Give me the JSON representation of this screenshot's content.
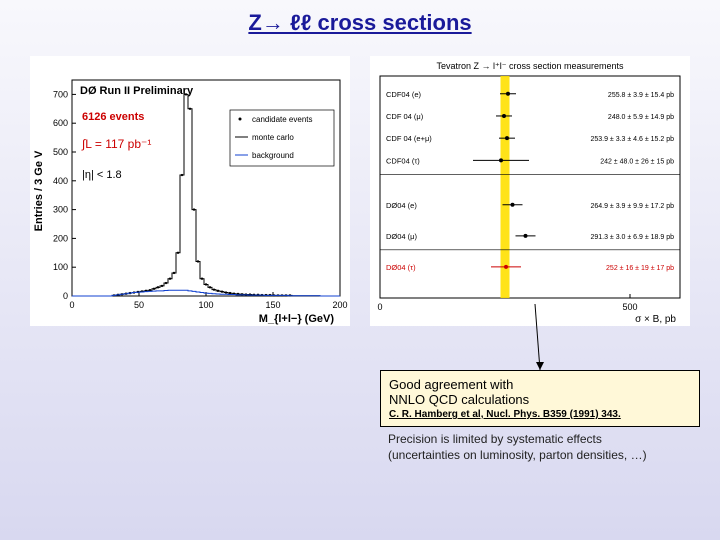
{
  "title": "Z→ ℓℓ cross sections",
  "leftChart": {
    "type": "histogram",
    "headerLeft": "Entries / 3 Ge V",
    "headerRight": "DØ Run II Preliminary",
    "eventsLabel": "6126 events",
    "eventsColor": "#cc0000",
    "lumiLabel": "∫L = 117 pb⁻¹",
    "lumiColor": "#cc0000",
    "etaLabel": "|η| < 1.8",
    "legend": [
      {
        "label": "candidate events",
        "marker": "point",
        "color": "#000000"
      },
      {
        "label": "monte carlo",
        "marker": "line",
        "color": "#000000"
      },
      {
        "label": "background",
        "marker": "line",
        "color": "#1040d0"
      }
    ],
    "xlabel": "M_{l+l−}  (GeV)",
    "xlim": [
      0,
      200
    ],
    "xticks": [
      0,
      50,
      100,
      150,
      200
    ],
    "ylim": [
      0,
      750
    ],
    "yticks": [
      0,
      100,
      200,
      300,
      400,
      500,
      600,
      700
    ],
    "hist_bins": [
      0,
      0,
      0,
      0,
      0,
      0,
      0,
      0,
      0,
      0,
      2,
      4,
      6,
      8,
      10,
      12,
      14,
      16,
      18,
      20,
      25,
      30,
      35,
      45,
      60,
      80,
      150,
      420,
      700,
      650,
      300,
      120,
      60,
      40,
      30,
      22,
      18,
      15,
      12,
      10,
      8,
      7,
      6,
      5,
      5,
      4,
      4,
      3,
      3,
      3,
      2,
      2,
      2,
      2,
      2,
      1,
      1,
      1,
      1,
      1,
      1,
      1,
      0,
      0,
      0,
      0,
      0
    ],
    "hist_color": "#000000",
    "bg_bins": [
      0,
      0,
      0,
      0,
      0,
      0,
      0,
      0,
      0,
      0,
      2,
      4,
      6,
      8,
      10,
      12,
      13,
      14,
      15,
      16,
      17,
      18,
      18,
      19,
      20,
      20,
      20,
      20,
      20,
      18,
      16,
      14,
      12,
      10,
      9,
      8,
      7,
      6,
      6,
      5,
      5,
      4,
      4,
      4,
      3,
      3,
      3,
      3,
      2,
      2,
      2,
      2,
      2,
      2,
      1,
      1,
      1,
      1,
      1,
      1,
      1,
      1,
      0,
      0,
      0,
      0,
      0
    ],
    "bg_color": "#1040d0",
    "background_color": "#ffffff",
    "axis_color": "#000000",
    "label_fontsize": 11
  },
  "rightChart": {
    "type": "point-range",
    "title": "Tevatron Z → l⁺l⁻ cross section measurements",
    "xlabel": "σ × B, pb",
    "xlim": [
      0,
      600
    ],
    "xticks": [
      0,
      500
    ],
    "rows": [
      {
        "label": "CDF04 (e)",
        "value": "255.8 ± 3.9",
        "extra": "± 15.4 pb",
        "x": 256,
        "xerr": 16,
        "color": "#000000"
      },
      {
        "label": "CDF 04 (μ)",
        "value": "248.0 ± 5.9",
        "extra": "± 14.9 pb",
        "x": 248,
        "xerr": 16,
        "color": "#000000"
      },
      {
        "label": "CDF 04 (e+μ)",
        "value": "253.9 ± 3.3 ± 4.6 ± 15.2 pb",
        "x": 254,
        "xerr": 16,
        "color": "#000000"
      },
      {
        "label": "CDF04 (τ)",
        "value": "242 ± 48.0 ± 26 ± 15 pb",
        "x": 242,
        "xerr": 56,
        "color": "#000000"
      },
      {
        "label": "DØ04 (e)",
        "value": "264.9 ± 3.9 ± 9.9 ± 17.2 pb",
        "x": 265,
        "xerr": 20,
        "color": "#000000"
      },
      {
        "label": "DØ04 (μ)",
        "value": "291.3 ± 3.0 ± 6.9 ± 18.9 pb",
        "x": 291,
        "xerr": 20,
        "color": "#000000"
      },
      {
        "label": "DØ04 (τ)",
        "value": "252 ± 16 ± 19 ± 17 pb",
        "x": 252,
        "xerr": 30,
        "color": "#cc0000"
      }
    ],
    "theory_band": {
      "x": 250,
      "width": 18,
      "color": "#ffe000"
    },
    "background_color": "#ffffff",
    "axis_color": "#000000",
    "label_fontsize": 8
  },
  "annotation": {
    "line1": "Good agreement with",
    "line2": "NNLO  QCD calculations",
    "reference": "C. R. Hamberg et al, Nucl. Phys. B359 (1991) 343.",
    "bg": "#fff8d8"
  },
  "precision": {
    "line1": "Precision is limited by systematic effects",
    "line2": "(uncertainties on luminosity, parton densities, …)"
  },
  "arrow_color": "#000000"
}
